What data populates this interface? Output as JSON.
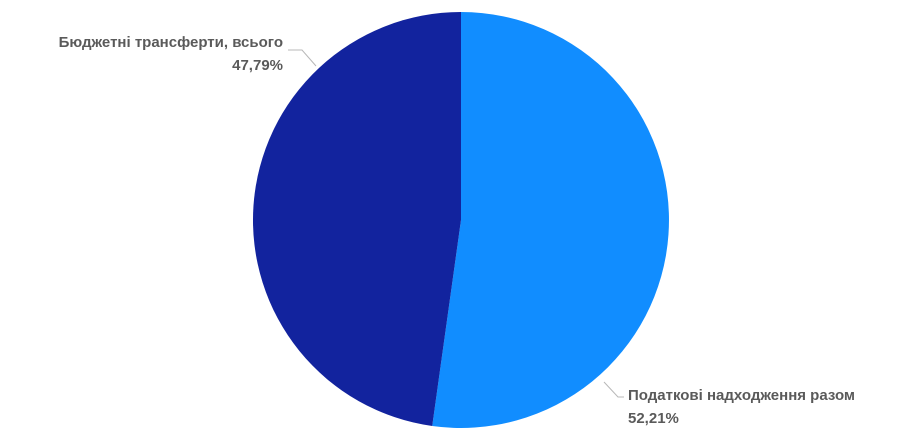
{
  "chart_data": {
    "type": "pie",
    "title": "",
    "slices": [
      {
        "label": "Податкові надходження разом",
        "value": 52.21,
        "value_label": "52,21%",
        "color": "#118dff"
      },
      {
        "label": "Бюджетні трансферти, всього",
        "value": 47.79,
        "value_label": "47,79%",
        "color": "#12239e"
      }
    ],
    "start_angle_deg": 0,
    "direction": "clockwise",
    "legend": "none",
    "data_labels": "outside"
  }
}
